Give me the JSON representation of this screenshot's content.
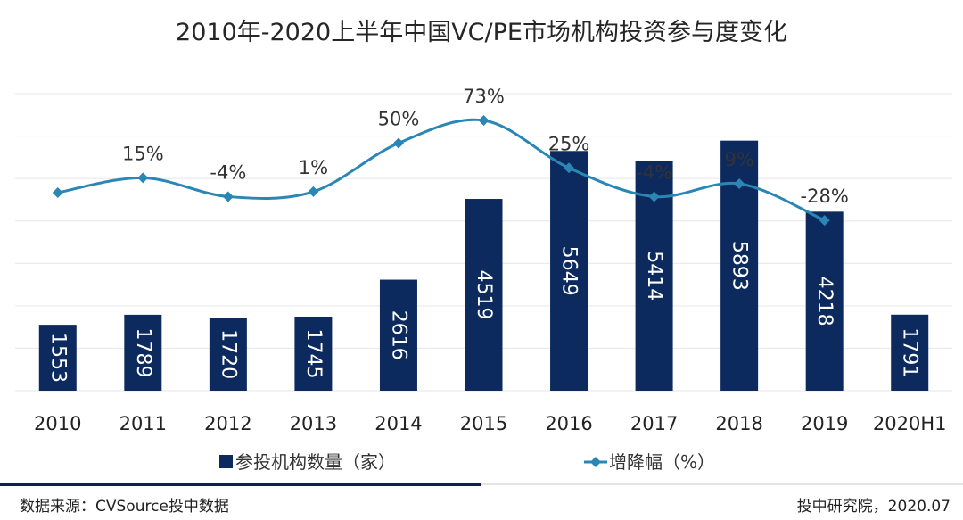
{
  "chart_data": {
    "type": "bar+line",
    "title": "2010年-2020上半年中国VC/PE市场机构投资参与度变化",
    "categories": [
      "2010",
      "2011",
      "2012",
      "2013",
      "2014",
      "2015",
      "2016",
      "2017",
      "2018",
      "2019",
      "2020H1"
    ],
    "series": [
      {
        "name": "参投机构数量（家）",
        "type": "bar",
        "axis": "primary",
        "values": [
          1553,
          1789,
          1720,
          1745,
          2616,
          4519,
          5649,
          5414,
          5893,
          4218,
          1791
        ]
      },
      {
        "name": "增降幅（%）",
        "type": "line",
        "axis": "secondary",
        "values": [
          0,
          15,
          -4,
          1,
          50,
          73,
          25,
          -4,
          9,
          -28,
          null
        ],
        "labels": [
          null,
          "15%",
          "-4%",
          "1%",
          "50%",
          "73%",
          "25%",
          "-4%",
          "9%",
          "-28%",
          null
        ]
      }
    ],
    "ylim": [
      0,
      7000
    ],
    "y2lim": [
      -200,
      100
    ],
    "grid": true,
    "legend_position": "bottom",
    "colors": {
      "bar": "#0d2a5e",
      "line": "#2a86b4",
      "grid": "#e6e6e6"
    }
  },
  "footer": {
    "source": "数据来源：CVSource投中数据",
    "publisher": "投中研究院，2020.07",
    "rule_colors": [
      "#0d1f4d",
      "#e4e4e4"
    ]
  }
}
